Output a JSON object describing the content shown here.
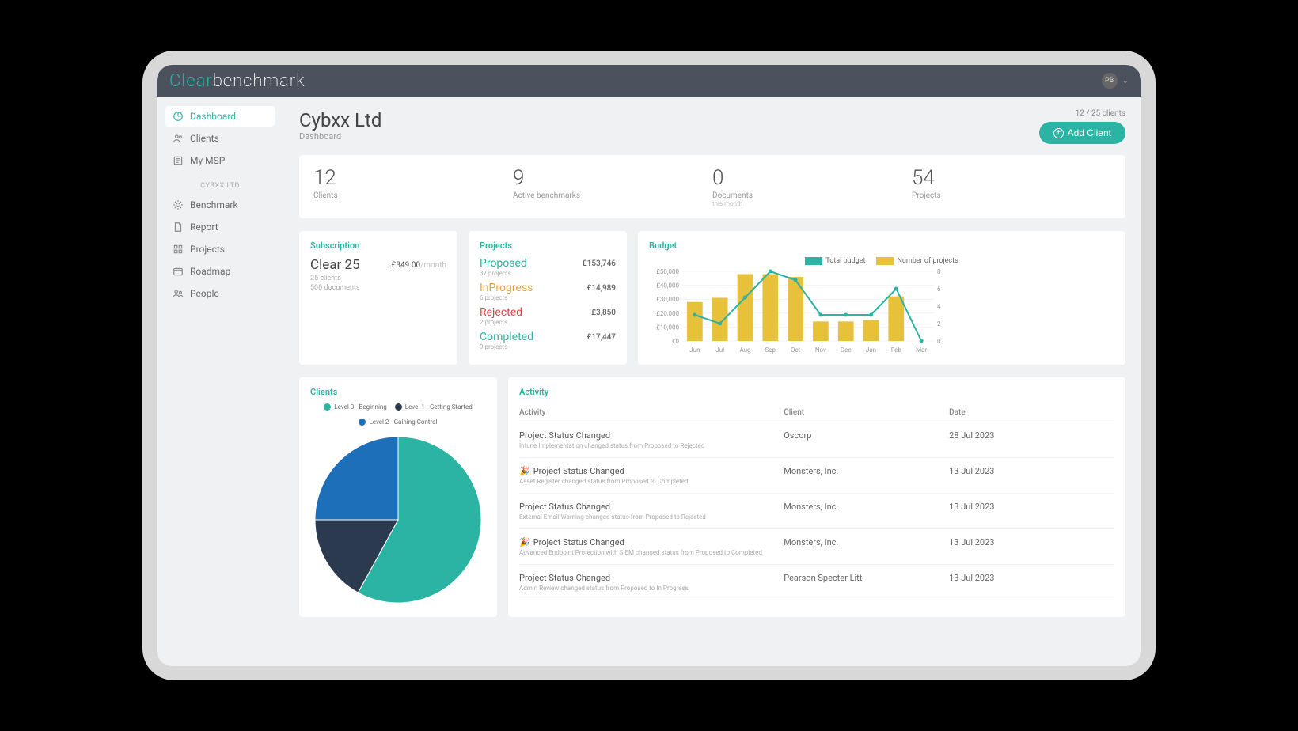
{
  "brand": {
    "part1": "Clear",
    "part2": "benchmark"
  },
  "user": {
    "initials": "PB"
  },
  "sidebar": {
    "top": [
      {
        "label": "Dashboard",
        "icon": "dashboard",
        "active": true
      },
      {
        "label": "Clients",
        "icon": "clients",
        "active": false
      },
      {
        "label": "My MSP",
        "icon": "msp",
        "active": false
      }
    ],
    "section_label": "CYBXX LTD",
    "bottom": [
      {
        "label": "Benchmark",
        "icon": "benchmark"
      },
      {
        "label": "Report",
        "icon": "report"
      },
      {
        "label": "Projects",
        "icon": "projects"
      },
      {
        "label": "Roadmap",
        "icon": "roadmap"
      },
      {
        "label": "People",
        "icon": "people"
      }
    ]
  },
  "page": {
    "title": "Cybxx Ltd",
    "subtitle": "Dashboard",
    "client_count_text": "12 / 25 clients",
    "add_client_label": "Add Client"
  },
  "stats": [
    {
      "value": "12",
      "label": "Clients",
      "sublabel": ""
    },
    {
      "value": "9",
      "label": "Active benchmarks",
      "sublabel": ""
    },
    {
      "value": "0",
      "label": "Documents",
      "sublabel": "this month"
    },
    {
      "value": "54",
      "label": "Projects",
      "sublabel": ""
    }
  ],
  "subscription": {
    "title": "Subscription",
    "plan": "Clear 25",
    "price": "£349.00",
    "period": "/month",
    "line1": "25 clients",
    "line2": "500 documents"
  },
  "projects_card": {
    "title": "Projects",
    "rows": [
      {
        "status": "Proposed",
        "count": "37 projects",
        "value": "£153,746",
        "color": "#2bb3a3"
      },
      {
        "status": "InProgress",
        "count": "6 projects",
        "value": "£14,989",
        "color": "#e8a23a"
      },
      {
        "status": "Rejected",
        "count": "2 projects",
        "value": "£3,850",
        "color": "#d24a4a"
      },
      {
        "status": "Completed",
        "count": "9 projects",
        "value": "£17,447",
        "color": "#2bb3a3"
      }
    ]
  },
  "budget": {
    "title": "Budget",
    "legend": [
      {
        "label": "Total budget",
        "color": "#2bb3a3"
      },
      {
        "label": "Number of projects",
        "color": "#e8c13a"
      }
    ],
    "months": [
      "Jun",
      "Jul",
      "Aug",
      "Sep",
      "Oct",
      "Nov",
      "Dec",
      "Jan",
      "Feb",
      "Mar"
    ],
    "bar_values": [
      28000,
      31000,
      48000,
      48000,
      46000,
      14000,
      14000,
      15000,
      32000,
      0
    ],
    "line_values": [
      3,
      2,
      5,
      8,
      7,
      3,
      3,
      3,
      6,
      0
    ],
    "y_left": {
      "max": 50000,
      "step": 10000,
      "labels": [
        "£0",
        "£10,000",
        "£20,000",
        "£30,000",
        "£40,000",
        "£50,000"
      ]
    },
    "y_right": {
      "max": 8,
      "step": 2,
      "labels": [
        "0",
        "2",
        "4",
        "6",
        "8"
      ]
    },
    "bar_color": "#e8c13a",
    "line_color": "#2bb3a3",
    "grid_color": "#e8e8e8",
    "axis_label_color": "#999999",
    "axis_font_size": 8
  },
  "clients_pie": {
    "title": "Clients",
    "legend": [
      {
        "label": "Level 0 - Beginning",
        "color": "#2bb3a3"
      },
      {
        "label": "Level 1 - Getting Started",
        "color": "#2c3a4f"
      },
      {
        "label": "Level 2 - Gaining Control",
        "color": "#1c6fb8"
      }
    ],
    "slices": [
      {
        "value": 58,
        "color": "#2bb3a3"
      },
      {
        "value": 17,
        "color": "#2c3a4f"
      },
      {
        "value": 25,
        "color": "#1c6fb8"
      }
    ],
    "stroke": "#ffffff"
  },
  "activity": {
    "title": "Activity",
    "columns": [
      "Activity",
      "Client",
      "Date"
    ],
    "rows": [
      {
        "title": "Project Status Changed",
        "desc": "Intune Implementation changed status from Proposed to Rejected",
        "client": "Oscorp",
        "date": "28 Jul 2023",
        "icon": ""
      },
      {
        "title": "Project Status Changed",
        "desc": "Asset Register changed status from Proposed to Completed",
        "client": "Monsters, Inc.",
        "date": "13 Jul 2023",
        "icon": "🎉"
      },
      {
        "title": "Project Status Changed",
        "desc": "External Email Warning changed status from Proposed to Rejected",
        "client": "Monsters, Inc.",
        "date": "13 Jul 2023",
        "icon": ""
      },
      {
        "title": "Project Status Changed",
        "desc": "Advanced Endpoint Protection with SIEM changed status from Proposed to Completed",
        "client": "Monsters, Inc.",
        "date": "13 Jul 2023",
        "icon": "🎉"
      },
      {
        "title": "Project Status Changed",
        "desc": "Admin Review changed status from Proposed to In Progress",
        "client": "Pearson Specter Litt",
        "date": "13 Jul 2023",
        "icon": ""
      }
    ]
  },
  "colors": {
    "accent": "#2bb3a3",
    "dark": "#4c525d"
  }
}
